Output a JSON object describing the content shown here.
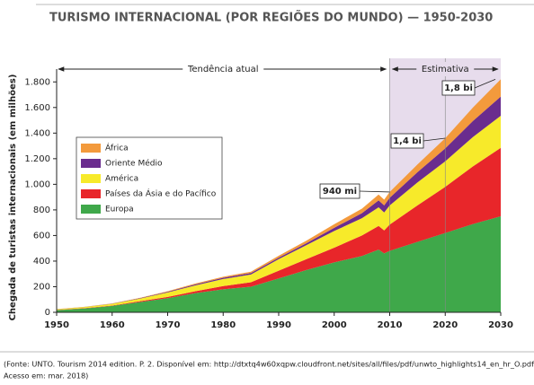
{
  "chart_data": {
    "type": "stacked-area",
    "title": "TURISMO INTERNACIONAL (POR REGIÕES DO MUNDO) — 1950-2030",
    "y_label": "Chegada de turistas internacionais (em milhões)",
    "x": [
      1950,
      1955,
      1960,
      1965,
      1970,
      1975,
      1980,
      1985,
      1990,
      1995,
      2000,
      2005,
      2008,
      2009,
      2010,
      2015,
      2020,
      2025,
      2030
    ],
    "series": [
      {
        "name": "Europa",
        "color": "#3fa84a",
        "values": [
          17,
          30,
          50,
          80,
          110,
          150,
          180,
          200,
          265,
          330,
          390,
          440,
          490,
          460,
          480,
          550,
          620,
          690,
          750
        ]
      },
      {
        "name": "Países da Ásia e do Pacífico",
        "color": "#e8262a",
        "values": [
          1,
          2,
          3,
          7,
          10,
          15,
          25,
          35,
          60,
          85,
          115,
          160,
          185,
          180,
          205,
          285,
          360,
          450,
          535
        ]
      },
      {
        "name": "América",
        "color": "#f7ea2a",
        "values": [
          6,
          9,
          13,
          20,
          35,
          45,
          55,
          60,
          90,
          110,
          130,
          135,
          145,
          140,
          150,
          180,
          200,
          230,
          250
        ]
      },
      {
        "name": "Oriente Médio",
        "color": "#6a2c8e",
        "values": [
          0.5,
          1,
          1.5,
          3,
          5,
          8,
          10,
          12,
          12,
          15,
          25,
          40,
          55,
          55,
          60,
          80,
          100,
          125,
          150
        ]
      },
      {
        "name": "África",
        "color": "#f39a3c",
        "values": [
          0.5,
          1,
          2,
          3,
          5,
          7,
          8,
          10,
          15,
          20,
          28,
          35,
          45,
          45,
          45,
          60,
          80,
          105,
          135
        ]
      }
    ],
    "xlim": [
      1950,
      2030
    ],
    "xticks": [
      1950,
      1960,
      1970,
      1980,
      1990,
      2000,
      2010,
      2020,
      2030
    ],
    "ylim": [
      0,
      1900
    ],
    "yticks": [
      0,
      200,
      400,
      600,
      800,
      {
        "value": 1000,
        "label": "1.000"
      },
      {
        "value": 1200,
        "label": "1.200"
      },
      {
        "value": 1400,
        "label": "1.400"
      },
      {
        "value": 1600,
        "label": "1.600"
      },
      {
        "value": 1800,
        "label": "1.800"
      }
    ],
    "shaded_region": [
      2010,
      2030
    ],
    "shaded_color": "#e7dcec",
    "period_labels": [
      "Tendência atual",
      "Estimativa"
    ],
    "callouts": [
      "940 mi",
      "1,4 bi",
      "1,8 bi"
    ],
    "source": [
      "(Fonte: UNTO. Tourism 2014 edition. P. 2. Disponível em: http://dtxtq4w60xqpw.cloudfront.net/sites/all/files/pdf/unwto_highlights14_en_hr_O.pdf.",
      "Acesso em: mar. 2018)"
    ]
  }
}
